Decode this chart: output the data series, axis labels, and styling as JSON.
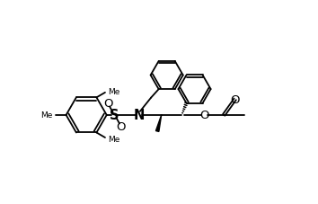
{
  "bg_color": "#ffffff",
  "line_color": "#000000",
  "lw": 1.3,
  "fig_w": 3.54,
  "fig_h": 2.28,
  "dpi": 100,
  "xlim": [
    0,
    10.5
  ],
  "ylim": [
    0,
    7.0
  ]
}
